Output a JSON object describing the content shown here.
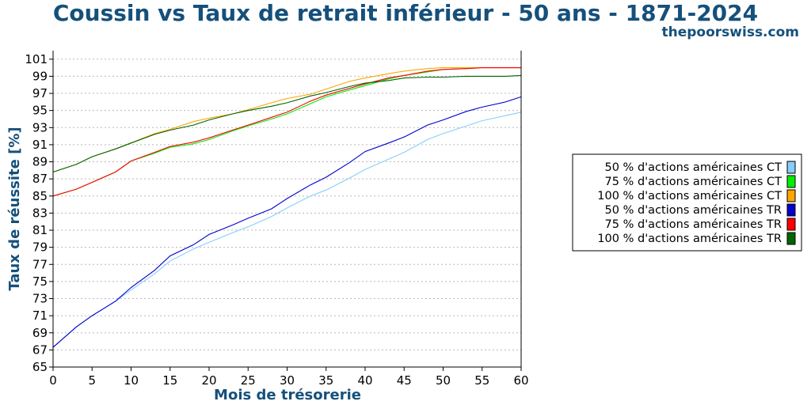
{
  "header": {
    "title": "Coussin vs Taux de retrait inférieur - 50 ans - 1871-2024",
    "site": "thepoorswiss.com"
  },
  "chart_data": {
    "type": "line",
    "title": "Coussin vs Taux de retrait inférieur - 50 ans - 1871-2024",
    "xlabel": "Mois de trésorerie",
    "ylabel": "Taux de réussite [%]",
    "xlim": [
      0,
      60
    ],
    "ylim": [
      65,
      102
    ],
    "xticks": [
      0,
      5,
      10,
      15,
      20,
      25,
      30,
      35,
      40,
      45,
      50,
      55,
      60
    ],
    "yticks": [
      65,
      67,
      69,
      71,
      73,
      75,
      77,
      79,
      81,
      83,
      85,
      87,
      89,
      91,
      93,
      95,
      97,
      99,
      101
    ],
    "grid": "horizontal-dotted",
    "legend_position": "right",
    "x": [
      0,
      3,
      5,
      8,
      10,
      13,
      15,
      18,
      20,
      23,
      25,
      28,
      30,
      33,
      35,
      38,
      40,
      43,
      45,
      48,
      50,
      53,
      55,
      58,
      60
    ],
    "series": [
      {
        "name": "50 % d'actions américaines CT",
        "color": "#87cefa",
        "values": [
          67.3,
          69.7,
          71.0,
          72.7,
          74.0,
          75.9,
          77.4,
          78.8,
          79.6,
          80.7,
          81.4,
          82.6,
          83.6,
          85.0,
          85.7,
          87.1,
          88.1,
          89.3,
          90.1,
          91.6,
          92.3,
          93.2,
          93.8,
          94.4,
          94.8
        ]
      },
      {
        "name": "75 % d'actions américaines CT",
        "color": "#00ee00",
        "values": [
          85.0,
          85.8,
          86.6,
          87.8,
          89.1,
          90.0,
          90.7,
          91.1,
          91.6,
          92.6,
          93.2,
          94.0,
          94.6,
          95.8,
          96.6,
          97.4,
          97.9,
          98.7,
          99.1,
          99.5,
          99.8,
          99.9,
          100.0,
          100.0,
          100.0
        ]
      },
      {
        "name": "100 % d'actions américaines CT",
        "color": "#ffa500",
        "values": [
          87.8,
          88.7,
          89.6,
          90.5,
          91.2,
          92.3,
          92.8,
          93.7,
          94.1,
          94.6,
          95.1,
          95.9,
          96.4,
          96.9,
          97.5,
          98.4,
          98.8,
          99.3,
          99.6,
          99.9,
          100.0,
          100.0,
          100.0,
          100.0,
          100.0
        ]
      },
      {
        "name": "50 % d'actions américaines TR",
        "color": "#0000cd",
        "values": [
          67.3,
          69.7,
          71.0,
          72.7,
          74.3,
          76.3,
          78.0,
          79.3,
          80.5,
          81.6,
          82.4,
          83.5,
          84.7,
          86.3,
          87.2,
          88.9,
          90.2,
          91.2,
          91.9,
          93.3,
          93.9,
          94.9,
          95.4,
          96.0,
          96.6
        ]
      },
      {
        "name": "75 % d'actions américaines TR",
        "color": "#ff0000",
        "values": [
          85.0,
          85.8,
          86.6,
          87.8,
          89.1,
          90.1,
          90.8,
          91.3,
          91.8,
          92.7,
          93.3,
          94.2,
          94.8,
          96.1,
          96.8,
          97.6,
          98.1,
          98.8,
          99.1,
          99.6,
          99.8,
          99.9,
          100.0,
          100.0,
          100.0
        ]
      },
      {
        "name": "100 % d'actions américaines TR",
        "color": "#006400",
        "values": [
          87.8,
          88.7,
          89.6,
          90.5,
          91.2,
          92.2,
          92.7,
          93.3,
          93.9,
          94.6,
          95.0,
          95.5,
          95.9,
          96.7,
          97.1,
          97.8,
          98.2,
          98.5,
          98.8,
          98.9,
          98.9,
          99.0,
          99.0,
          99.0,
          99.1
        ]
      }
    ]
  }
}
